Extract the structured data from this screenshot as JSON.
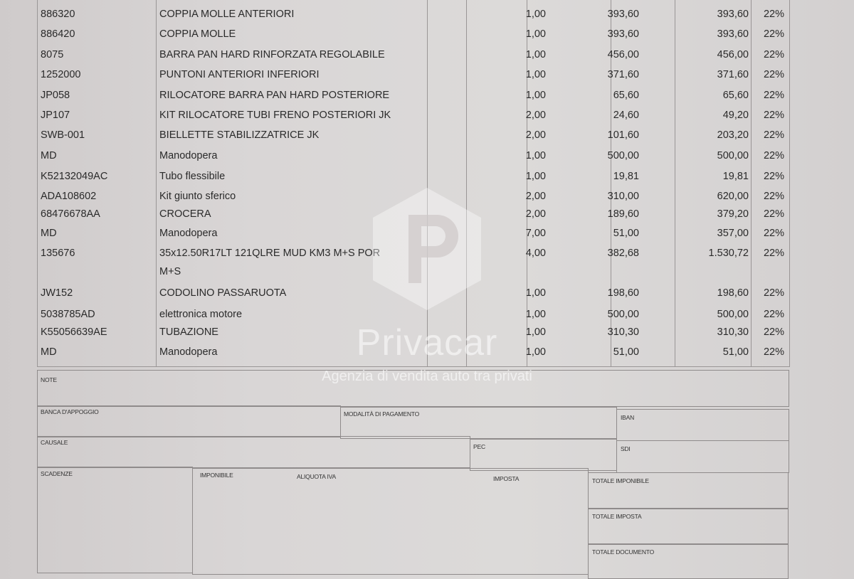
{
  "invoice_lines": [
    {
      "code": "886320",
      "description": "COPPIA MOLLE ANTERIORI",
      "qty": "1,00",
      "unit_price": "393,60",
      "total": "393,60",
      "vat": "22%"
    },
    {
      "code": "886420",
      "description": "COPPIA MOLLE",
      "qty": "1,00",
      "unit_price": "393,60",
      "total": "393,60",
      "vat": "22%"
    },
    {
      "code": "8075",
      "description": "BARRA PAN HARD RINFORZATA REGOLABILE",
      "qty": "1,00",
      "unit_price": "456,00",
      "total": "456,00",
      "vat": "22%"
    },
    {
      "code": "1252000",
      "description": "PUNTONI ANTERIORI INFERIORI",
      "qty": "1,00",
      "unit_price": "371,60",
      "total": "371,60",
      "vat": "22%"
    },
    {
      "code": "JP058",
      "description": "RILOCATORE BARRA PAN HARD POSTERIORE",
      "qty": "1,00",
      "unit_price": "65,60",
      "total": "65,60",
      "vat": "22%"
    },
    {
      "code": "JP107",
      "description": "KIT RILOCATORE TUBI FRENO POSTERIORI JK",
      "qty": "2,00",
      "unit_price": "24,60",
      "total": "49,20",
      "vat": "22%"
    },
    {
      "code": "SWB-001",
      "description": "BIELLETTE STABILIZZATRICE JK",
      "qty": "2,00",
      "unit_price": "101,60",
      "total": "203,20",
      "vat": "22%"
    },
    {
      "code": "MD",
      "description": "Manodopera",
      "qty": "1,00",
      "unit_price": "500,00",
      "total": "500,00",
      "vat": "22%"
    },
    {
      "code": "K52132049AC",
      "description": "Tubo flessibile",
      "qty": "1,00",
      "unit_price": "19,81",
      "total": "19,81",
      "vat": "22%"
    },
    {
      "code": "ADA108602",
      "description": "Kit giunto sferico",
      "qty": "2,00",
      "unit_price": "310,00",
      "total": "620,00",
      "vat": "22%"
    },
    {
      "code": "68476678AA",
      "description": "CROCERA",
      "qty": "2,00",
      "unit_price": "189,60",
      "total": "379,20",
      "vat": "22%"
    },
    {
      "code": "MD",
      "description": "Manodopera",
      "qty": "7,00",
      "unit_price": "51,00",
      "total": "357,00",
      "vat": "22%"
    },
    {
      "code": "135676",
      "description": "35x12.50R17LT 121QLRE MUD KM3 M+S POR",
      "description_line2": "M+S",
      "qty": "4,00",
      "unit_price": "382,68",
      "total": "1.530,72",
      "vat": "22%"
    },
    {
      "code": "JW152",
      "description": "CODOLINO PASSARUOTA",
      "qty": "1,00",
      "unit_price": "198,60",
      "total": "198,60",
      "vat": "22%"
    },
    {
      "code": "5038785AD",
      "description": "elettronica motore",
      "qty": "1,00",
      "unit_price": "500,00",
      "total": "500,00",
      "vat": "22%"
    },
    {
      "code": "K55056639AE",
      "description": "TUBAZIONE",
      "qty": "1,00",
      "unit_price": "310,30",
      "total": "310,30",
      "vat": "22%"
    },
    {
      "code": "MD",
      "description": "Manodopera",
      "qty": "1,00",
      "unit_price": "51,00",
      "total": "51,00",
      "vat": "22%"
    }
  ],
  "form": {
    "note": "NOTE",
    "bank": "BANCA D'APPOGGIO",
    "payment_method": "MODALITÀ DI PAGAMENTO",
    "iban": "IBAN",
    "causale": "CAUSALE",
    "pec": "PEC",
    "sdi": "SDI",
    "scadenze": "SCADENZE",
    "imponibile": "IMPONIBILE",
    "aliquota_iva": "ALIQUOTA IVA",
    "imposta": "IMPOSTA",
    "totale_imponibile": "TOTALE IMPONIBILE",
    "totale_imposta": "TOTALE IMPOSTA",
    "totale_documento": "TOTALE DOCUMENTO"
  },
  "watermark": {
    "name": "Privacar",
    "tagline": "Agenzia di vendita auto tra privati",
    "logo_letter": "P"
  },
  "colors": {
    "paper": "#dcdad9",
    "lines": "#9a9696"
  }
}
